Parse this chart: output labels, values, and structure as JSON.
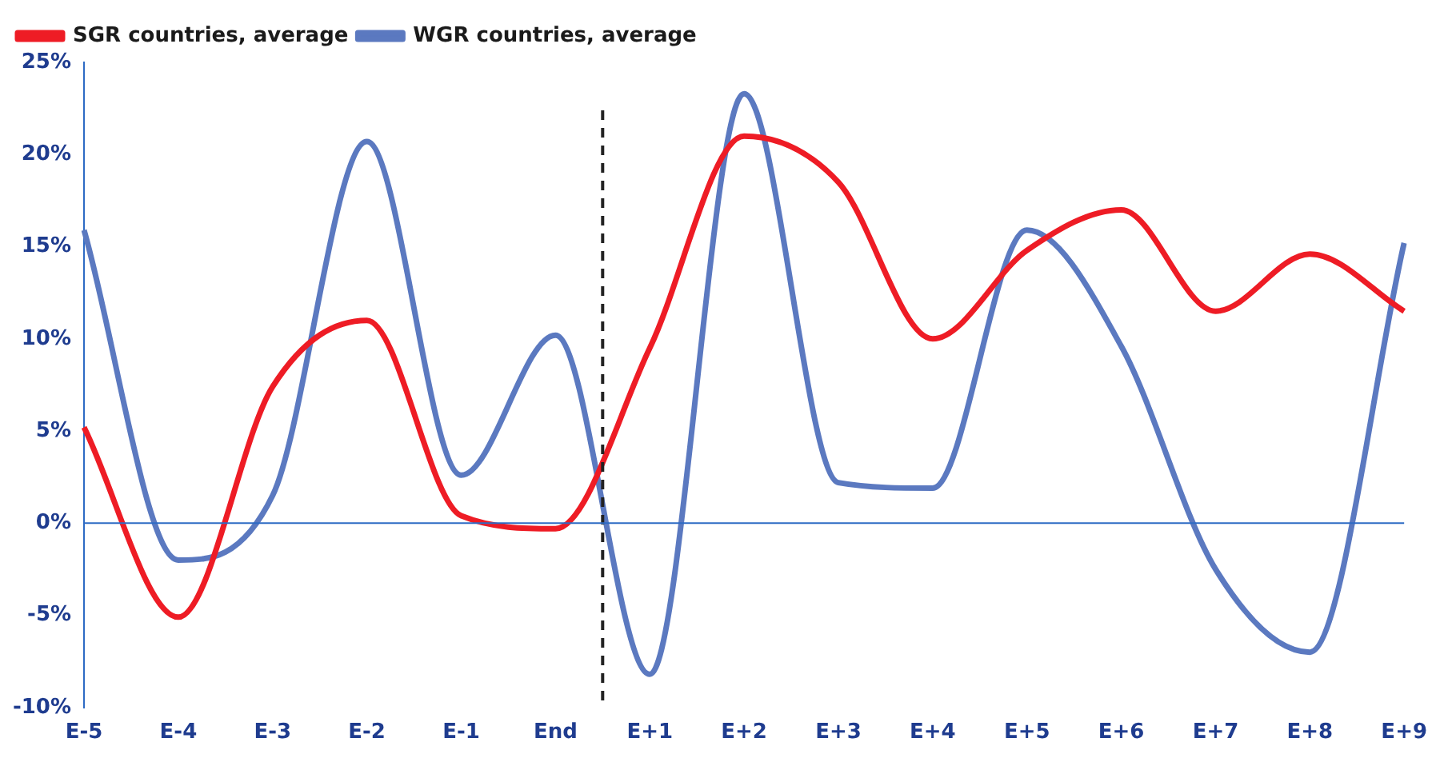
{
  "chart_data": {
    "type": "line",
    "categories": [
      "E-5",
      "E-4",
      "E-3",
      "E-2",
      "E-1",
      "End",
      "E+1",
      "E+2",
      "E+3",
      "E+4",
      "E+5",
      "E+6",
      "E+7",
      "E+8",
      "E+9"
    ],
    "series": [
      {
        "name": "SGR countries, average",
        "color": "#ee1c25",
        "values": [
          5.2,
          -5.1,
          7.4,
          11.0,
          0.4,
          -0.3,
          9.5,
          21.0,
          18.5,
          10.0,
          14.8,
          17.0,
          11.5,
          14.6,
          11.5
        ]
      },
      {
        "name": "WGR countries, average",
        "color": "#5b79c0",
        "values": [
          15.9,
          -2.0,
          1.5,
          20.7,
          2.6,
          10.2,
          -8.2,
          23.3,
          2.2,
          1.9,
          15.9,
          9.6,
          -2.5,
          -7.0,
          15.2
        ]
      }
    ],
    "ylim": [
      -10,
      25
    ],
    "yticks": [
      {
        "value": -10,
        "label": "-10%"
      },
      {
        "value": -5,
        "label": "-5%"
      },
      {
        "value": 0,
        "label": "0%"
      },
      {
        "value": 5,
        "label": "5%"
      },
      {
        "value": 10,
        "label": "10%"
      },
      {
        "value": 15,
        "label": "15%"
      },
      {
        "value": 20,
        "label": "20%"
      },
      {
        "value": 25,
        "label": "25%"
      }
    ],
    "ref_lines": [
      {
        "axis": "x",
        "value": "End",
        "line_style": "dashed",
        "color": "#222222"
      },
      {
        "axis": "y",
        "value": 0,
        "line_style": "solid",
        "color": "#2d6bc4"
      }
    ],
    "grid": false,
    "legend": "top left",
    "marker": "none",
    "line_style": "solid"
  }
}
